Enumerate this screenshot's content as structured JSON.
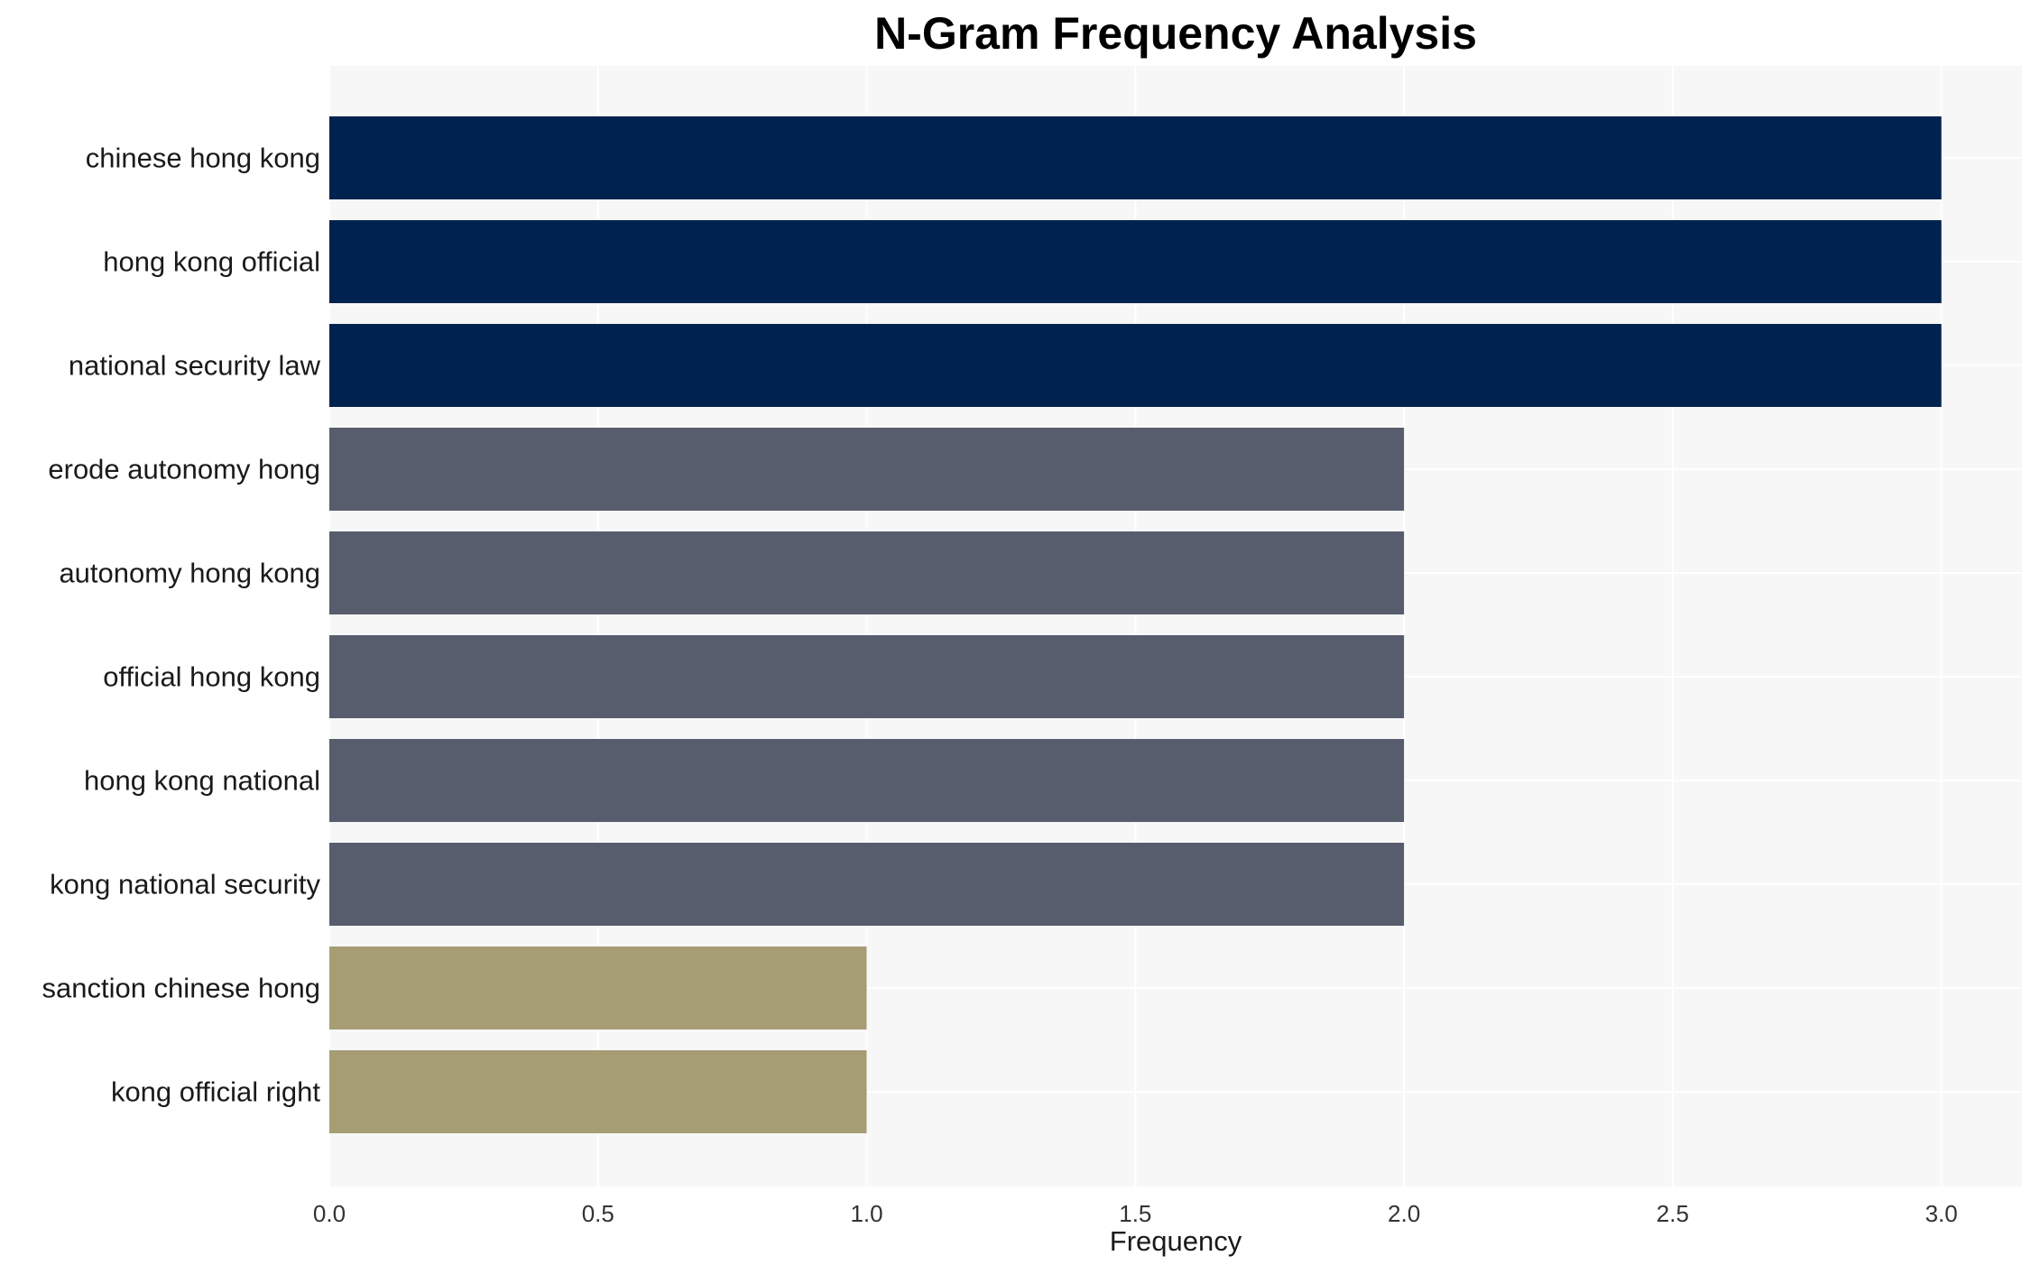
{
  "chart_data": {
    "type": "bar",
    "orientation": "horizontal",
    "title": "N-Gram Frequency Analysis",
    "xlabel": "Frequency",
    "ylabel": "",
    "xlim": [
      0,
      3.15
    ],
    "xticks": [
      "0.0",
      "0.5",
      "1.0",
      "1.5",
      "2.0",
      "2.5",
      "3.0"
    ],
    "grid": true,
    "categories": [
      "chinese hong kong",
      "hong kong official",
      "national security law",
      "erode autonomy hong",
      "autonomy hong kong",
      "official hong kong",
      "hong kong national",
      "kong national security",
      "sanction chinese hong",
      "kong official right"
    ],
    "values": [
      3,
      3,
      3,
      2,
      2,
      2,
      2,
      2,
      1,
      1
    ],
    "colors": {
      "3": "#00224e",
      "2": "#575d6d",
      "1": "#a69d75"
    },
    "background": "#f7f7f7",
    "gridline_color": "#ffffff"
  }
}
